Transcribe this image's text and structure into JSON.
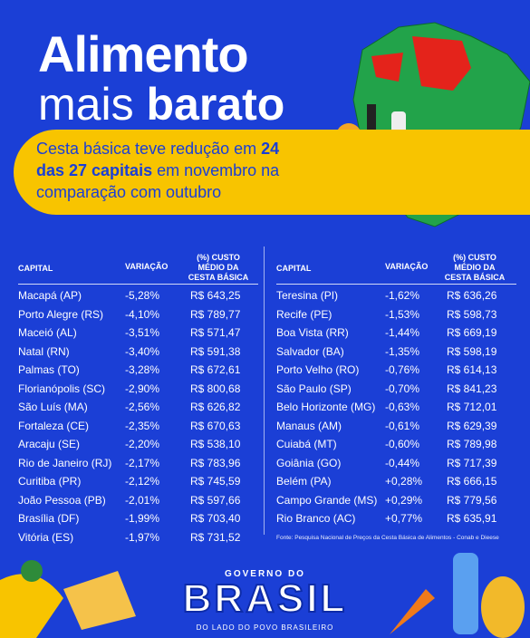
{
  "header": {
    "title_line1": "Alimento",
    "title_line2_light": "mais",
    "title_line2_bold": "barato"
  },
  "subtitle": {
    "parts": [
      "Cesta básica teve redução em ",
      "24 das 27 capitais",
      " em novembro na comparação com outubro"
    ]
  },
  "tables": [
    {
      "columns": [
        "CAPITAL",
        "VARIAÇÃO",
        "(%) CUSTO MÉDIO DA CESTA BÁSICA"
      ],
      "rows": [
        [
          "Macapá (AP)",
          "-5,28%",
          "R$ 643,25"
        ],
        [
          "Porto Alegre (RS)",
          "-4,10%",
          "R$ 789,77"
        ],
        [
          "Maceió (AL)",
          "-3,51%",
          "R$ 571,47"
        ],
        [
          "Natal (RN)",
          "-3,40%",
          "R$ 591,38"
        ],
        [
          "Palmas (TO)",
          "-3,28%",
          "R$ 672,61"
        ],
        [
          "Florianópolis (SC)",
          "-2,90%",
          "R$ 800,68"
        ],
        [
          "São Luís (MA)",
          "-2,56%",
          "R$ 626,82"
        ],
        [
          "Fortaleza (CE)",
          "-2,35%",
          "R$ 670,63"
        ],
        [
          "Aracaju (SE)",
          "-2,20%",
          "R$ 538,10"
        ],
        [
          "Rio de Janeiro (RJ)",
          "-2,17%",
          "R$ 783,96"
        ],
        [
          "Curitiba (PR)",
          "-2,12%",
          "R$ 745,59"
        ],
        [
          "João Pessoa (PB)",
          "-2,01%",
          "R$ 597,66"
        ],
        [
          "Brasília (DF)",
          "-1,99%",
          "R$ 703,40"
        ],
        [
          "Vitória (ES)",
          "-1,97%",
          "R$ 731,52"
        ]
      ]
    },
    {
      "columns": [
        "CAPITAL",
        "VARIAÇÃO",
        "(%) CUSTO MÉDIO DA CESTA BÁSICA"
      ],
      "rows": [
        [
          "Teresina (PI)",
          "-1,62%",
          "R$ 636,26"
        ],
        [
          "Recife (PE)",
          "-1,53%",
          "R$ 598,73"
        ],
        [
          "Boa Vista (RR)",
          "-1,44%",
          "R$ 669,19"
        ],
        [
          "Salvador (BA)",
          "-1,35%",
          "R$ 598,19"
        ],
        [
          "Porto Velho (RO)",
          "-0,76%",
          "R$ 614,13"
        ],
        [
          "São Paulo (SP)",
          "-0,70%",
          "R$ 841,23"
        ],
        [
          "Belo Horizonte (MG)",
          "-0,63%",
          "R$ 712,01"
        ],
        [
          "Manaus (AM)",
          "-0,61%",
          "R$ 629,39"
        ],
        [
          "Cuiabá (MT)",
          "-0,60%",
          "R$ 789,98"
        ],
        [
          "Goiânia (GO)",
          "-0,44%",
          "R$ 717,39"
        ],
        [
          "Belém (PA)",
          "+0,28%",
          "R$ 666,15"
        ],
        [
          "Campo Grande (MS)",
          "+0,29%",
          "R$ 779,56"
        ],
        [
          "Rio Branco (AC)",
          "+0,77%",
          "R$ 635,91"
        ]
      ]
    }
  ],
  "source": "Fonte: Pesquisa Nacional de Preços da Cesta Básica de Alimentos - Conab e Dieese",
  "footer": {
    "top": "GOVERNO DO",
    "logo": "BRASIL",
    "tagline": "DO LADO DO POVO BRASILEIRO"
  }
}
